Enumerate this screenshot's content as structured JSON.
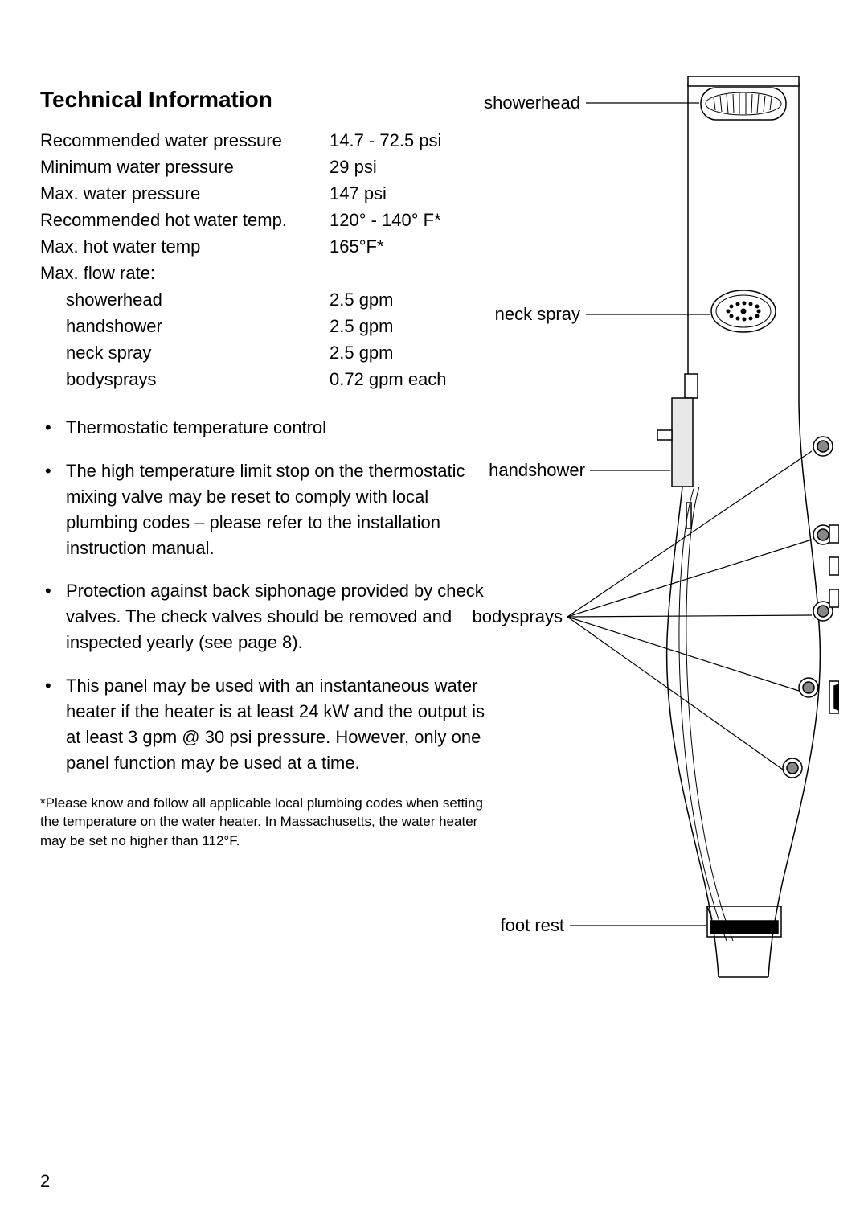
{
  "title": "Technical Information",
  "specs": [
    {
      "label": "Recommended water pressure",
      "value": "14.7 - 72.5 psi",
      "indent": false
    },
    {
      "label": "Minimum water pressure",
      "value": "29 psi",
      "indent": false
    },
    {
      "label": "Max. water pressure",
      "value": "147 psi",
      "indent": false
    },
    {
      "label": "Recommended hot water temp.",
      "value": "120° - 140° F*",
      "indent": false
    },
    {
      "label": "Max. hot water temp",
      "value": "165°F*",
      "indent": false
    },
    {
      "label": "Max. flow rate:",
      "value": "",
      "indent": false
    },
    {
      "label": "showerhead",
      "value": "2.5 gpm",
      "indent": true
    },
    {
      "label": "handshower",
      "value": "2.5 gpm",
      "indent": true
    },
    {
      "label": "neck spray",
      "value": "2.5 gpm",
      "indent": true
    },
    {
      "label": "bodysprays",
      "value": "0.72 gpm each",
      "indent": true
    }
  ],
  "bullets": [
    "Thermostatic temperature control",
    "The high temperature limit stop on the thermostatic mixing valve may be reset to comply with local plumbing codes – please refer to the installation instruction manual.",
    "Protection against back siphonage provided by check valves.  The check valves should be removed and inspected yearly (see page 8).",
    "This panel may be used with an instantaneous water heater if the heater is at least 24 kW and the output is at least 3 gpm @ 30 psi pressure.  However, only one panel function may be used at a time."
  ],
  "footnote": "*Please know and follow all applicable local plumbing codes when setting the temperature on the water heater.  In Massachusetts, the water heater may be set no higher than 112°F.",
  "page_number": "2",
  "diagram": {
    "labels": {
      "showerhead": "showerhead",
      "neckspray": "neck spray",
      "handshower": "handshower",
      "bodysprays": "bodysprays",
      "footrest": "foot rest"
    },
    "colors": {
      "stroke": "#000000",
      "fill_white": "#ffffff",
      "fill_gray": "#cccccc",
      "fill_light": "#e8e8e8"
    },
    "label_fontsize": 22,
    "stroke_width": 1.5
  }
}
